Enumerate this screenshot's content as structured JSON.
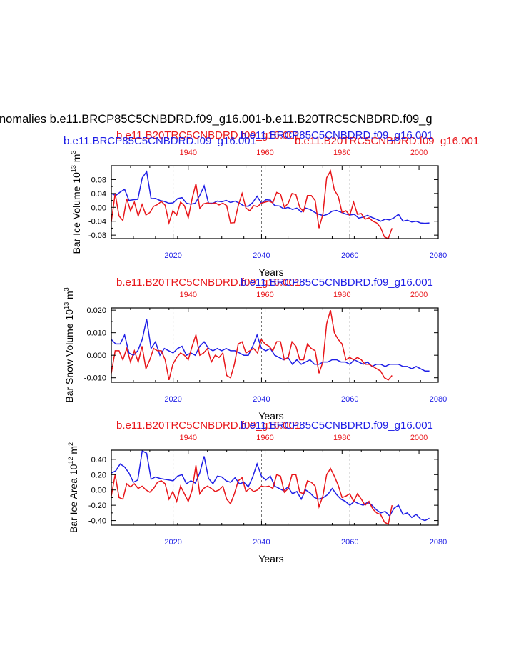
{
  "figure_title": "nomalies b.e11.BRCP85C5CNBDRD.f09_g16.001-b.e11.B20TRC5CNBDRD.f09_g",
  "colors": {
    "red": "#e8161a",
    "blue": "#1f1fe6",
    "black": "#000000",
    "grid": "#555555"
  },
  "top_axis_title_red": "b.e11.B20TRC5CNBDRD.f09_g16.001",
  "top_axis_title_blue": "b.e11.BRCP85C5CNBDRD.f09_g16.001",
  "chart_data": [
    {
      "type": "line",
      "title_red": "b.e11.B20TRC5CNBDRD.f09_g16.001",
      "title_blue": "b.e11.BRCP85C5CNBDRD.f09_g16.001",
      "ylabel": "Bar Ice Volume 10",
      "ylabel_exp": "13",
      "ylabel_unit": " m",
      "ylabel_unit_exp": "3",
      "xlabel": "Years",
      "ylim": [
        -0.09,
        0.12
      ],
      "yticks": [
        -0.08,
        -0.04,
        0.0,
        0.04,
        0.08
      ],
      "ytick_labels": [
        "-0.08",
        "-0.04",
        "0.00",
        "0.04",
        "0.08"
      ],
      "x_bottom_range": [
        2006,
        2080
      ],
      "x_bottom_ticks": [
        2020,
        2040,
        2060,
        2080
      ],
      "x_top_range": [
        1920,
        2005
      ],
      "x_top_ticks": [
        1940,
        1960,
        1980,
        2000
      ],
      "vertical_lines": [
        2020,
        2040,
        2060
      ],
      "series": [
        {
          "name": "b.e11.BRCP85C5CNBDRD.f09_g16.001",
          "color": "blue",
          "axis": "bottom",
          "x_start": 2006,
          "values": [
            0.04,
            0.034,
            0.044,
            0.052,
            0.02,
            0.022,
            0.023,
            0.085,
            0.103,
            0.025,
            0.026,
            0.02,
            0.017,
            0.012,
            0.013,
            0.025,
            0.028,
            0.012,
            0.009,
            0.012,
            0.034,
            0.062,
            0.012,
            0.012,
            0.018,
            0.016,
            0.02,
            0.014,
            0.018,
            0.012,
            0.004,
            0.003,
            0.014,
            0.032,
            0.012,
            0.022,
            0.021,
            0.005,
            0.004,
            -0.004,
            0.0,
            -0.006,
            -0.002,
            -0.013,
            -0.002,
            -0.006,
            -0.014,
            -0.02,
            -0.024,
            -0.02,
            -0.011,
            -0.009,
            -0.014,
            -0.019,
            -0.022,
            -0.02,
            -0.031,
            -0.028,
            -0.023,
            -0.029,
            -0.034,
            -0.04,
            -0.034,
            -0.036,
            -0.03,
            -0.02,
            -0.04,
            -0.037,
            -0.042,
            -0.04,
            -0.045,
            -0.046,
            -0.045
          ]
        },
        {
          "name": "b.e11.B20TRC5CNBDRD.f09_g16.001",
          "color": "red",
          "axis": "top",
          "x_start": 1920,
          "values": [
            -0.042,
            0.04,
            -0.025,
            -0.038,
            0.025,
            -0.01,
            0.015,
            -0.025,
            0.008,
            -0.022,
            -0.015,
            0.003,
            0.008,
            0.017,
            0.006,
            -0.045,
            -0.01,
            -0.022,
            0.015,
            0.005,
            -0.03,
            0.025,
            0.068,
            -0.003,
            0.01,
            0.013,
            0.01,
            0.013,
            0.007,
            0.012,
            0.005,
            -0.045,
            -0.044,
            0.005,
            0.04,
            -0.002,
            -0.01,
            0.005,
            0.002,
            0.012,
            0.015,
            0.018,
            0.013,
            0.043,
            0.038,
            0.0,
            0.012,
            0.04,
            0.037,
            0.0,
            -0.012,
            0.034,
            0.034,
            0.02,
            -0.06,
            -0.02,
            0.085,
            0.105,
            0.05,
            0.032,
            -0.015,
            -0.01,
            -0.023,
            0.015,
            -0.02,
            -0.018,
            -0.034,
            -0.03,
            -0.04,
            -0.045,
            -0.058,
            -0.085,
            -0.09,
            -0.06
          ]
        }
      ]
    },
    {
      "type": "line",
      "title_red": "b.e11.B20TRC5CNBDRD.f09_g16.001",
      "title_blue": "b.e11.BRCP85C5CNBDRD.f09_g16.001",
      "ylabel": "Bar Snow Volume 10",
      "ylabel_exp": "13",
      "ylabel_unit": " m",
      "ylabel_unit_exp": "3",
      "xlabel": "Years",
      "ylim": [
        -0.012,
        0.021
      ],
      "yticks": [
        -0.01,
        0.0,
        0.01,
        0.02
      ],
      "ytick_labels": [
        "-0.010",
        "0.000",
        "0.010",
        "0.020"
      ],
      "x_bottom_range": [
        2006,
        2080
      ],
      "x_bottom_ticks": [
        2020,
        2040,
        2060,
        2080
      ],
      "x_top_range": [
        1920,
        2005
      ],
      "x_top_ticks": [
        1940,
        1960,
        1980,
        2000
      ],
      "vertical_lines": [
        2020,
        2040,
        2060
      ],
      "series": [
        {
          "name": "b.e11.BRCP85C5CNBDRD.f09_g16.001",
          "color": "blue",
          "axis": "bottom",
          "x_start": 2006,
          "values": [
            0.007,
            0.005,
            0.005,
            0.009,
            0.001,
            0.0,
            0.002,
            0.007,
            0.016,
            0.003,
            0.006,
            0.0,
            0.003,
            0.002,
            0.001,
            0.003,
            0.004,
            0.0,
            0.001,
            0.0,
            0.004,
            0.006,
            0.003,
            0.002,
            0.003,
            0.002,
            0.003,
            0.002,
            0.002,
            0.001,
            0.0,
            0.0,
            0.004,
            0.009,
            0.003,
            0.002,
            0.003,
            0.0,
            -0.001,
            -0.002,
            -0.001,
            -0.004,
            -0.002,
            -0.004,
            -0.003,
            -0.002,
            -0.004,
            -0.004,
            -0.003,
            -0.003,
            -0.002,
            -0.002,
            -0.003,
            -0.003,
            -0.004,
            -0.002,
            -0.003,
            -0.004,
            -0.003,
            -0.005,
            -0.004,
            -0.004,
            -0.005,
            -0.004,
            -0.004,
            -0.004,
            -0.005,
            -0.005,
            -0.006,
            -0.005,
            -0.006,
            -0.007,
            -0.007
          ]
        },
        {
          "name": "b.e11.B20TRC5CNBDRD.f09_g16.001",
          "color": "red",
          "axis": "top",
          "x_start": 1920,
          "values": [
            -0.008,
            0.002,
            0.002,
            -0.002,
            0.003,
            -0.003,
            0.002,
            -0.003,
            0.004,
            -0.006,
            -0.002,
            0.003,
            0.002,
            0.002,
            -0.002,
            -0.011,
            -0.004,
            -0.001,
            0.001,
            0.0,
            -0.002,
            0.004,
            0.009,
            0.0,
            0.001,
            0.003,
            -0.003,
            0.0,
            -0.001,
            0.001,
            -0.009,
            -0.01,
            -0.004,
            0.005,
            0.006,
            0.001,
            0.002,
            0.003,
            0.001,
            0.007,
            0.005,
            0.004,
            0.002,
            0.006,
            0.006,
            -0.002,
            -0.001,
            0.006,
            0.004,
            -0.002,
            -0.002,
            0.005,
            0.003,
            0.002,
            -0.008,
            -0.003,
            0.014,
            0.02,
            0.01,
            0.007,
            0.005,
            -0.002,
            -0.001,
            -0.002,
            -0.001,
            -0.002,
            -0.004,
            -0.004,
            -0.005,
            -0.006,
            -0.007,
            -0.01,
            -0.011,
            -0.009
          ]
        }
      ]
    },
    {
      "type": "line",
      "title_red": "b.e11.B20TRC5CNBDRD.f09_g16.001",
      "title_blue": "b.e11.BRCP85C5CNBDRD.f09_g16.001",
      "ylabel": "Bar Ice Area 10",
      "ylabel_exp": "12",
      "ylabel_unit": " m",
      "ylabel_unit_exp": "2",
      "xlabel": "Years",
      "ylim": [
        -0.46,
        0.52
      ],
      "yticks": [
        -0.4,
        -0.2,
        0.0,
        0.2,
        0.4
      ],
      "ytick_labels": [
        "-0.40",
        "-0.20",
        "0.00",
        "0.20",
        "0.40"
      ],
      "x_bottom_range": [
        2006,
        2080
      ],
      "x_bottom_ticks": [
        2020,
        2040,
        2060,
        2080
      ],
      "x_top_range": [
        1920,
        2005
      ],
      "x_top_ticks": [
        1940,
        1960,
        1980,
        2000
      ],
      "vertical_lines": [
        2020,
        2040,
        2060
      ],
      "series": [
        {
          "name": "b.e11.BRCP85C5CNBDRD.f09_g16.001",
          "color": "blue",
          "axis": "bottom",
          "x_start": 2006,
          "values": [
            0.22,
            0.25,
            0.34,
            0.3,
            0.22,
            0.1,
            0.13,
            0.51,
            0.48,
            0.14,
            0.17,
            0.15,
            0.14,
            0.13,
            0.12,
            0.18,
            0.2,
            0.08,
            0.12,
            0.09,
            0.22,
            0.44,
            0.15,
            0.08,
            0.18,
            0.17,
            0.12,
            0.1,
            0.16,
            0.08,
            0.1,
            0.04,
            0.17,
            0.34,
            0.18,
            0.13,
            0.18,
            0.05,
            0.02,
            -0.01,
            0.04,
            -0.05,
            -0.02,
            -0.12,
            0.0,
            -0.04,
            -0.1,
            -0.12,
            -0.1,
            -0.06,
            0.02,
            -0.06,
            -0.12,
            -0.15,
            -0.2,
            -0.15,
            -0.18,
            -0.2,
            -0.16,
            -0.2,
            -0.26,
            -0.3,
            -0.28,
            -0.34,
            -0.24,
            -0.2,
            -0.32,
            -0.3,
            -0.36,
            -0.32,
            -0.38,
            -0.4,
            -0.37
          ]
        },
        {
          "name": "b.e11.B20TRC5CNBDRD.f09_g16.001",
          "color": "red",
          "axis": "top",
          "x_start": 1920,
          "values": [
            -0.08,
            0.2,
            -0.1,
            -0.12,
            0.08,
            0.04,
            0.08,
            0.02,
            0.05,
            0.0,
            -0.03,
            0.02,
            0.1,
            0.12,
            0.08,
            -0.12,
            -0.02,
            -0.15,
            0.05,
            -0.05,
            -0.15,
            0.0,
            0.32,
            -0.05,
            0.02,
            0.05,
            0.02,
            -0.02,
            0.0,
            0.05,
            -0.12,
            -0.18,
            -0.05,
            0.12,
            0.16,
            -0.02,
            0.02,
            -0.02,
            0.0,
            0.05,
            0.04,
            0.05,
            0.02,
            0.2,
            0.18,
            -0.03,
            0.02,
            0.2,
            0.2,
            -0.03,
            -0.05,
            0.12,
            0.1,
            0.05,
            -0.22,
            -0.08,
            0.2,
            0.28,
            0.18,
            0.06,
            -0.1,
            -0.08,
            -0.05,
            -0.15,
            -0.05,
            -0.12,
            -0.2,
            -0.15,
            -0.25,
            -0.3,
            -0.32,
            -0.42,
            -0.45,
            -0.2
          ]
        }
      ]
    }
  ]
}
